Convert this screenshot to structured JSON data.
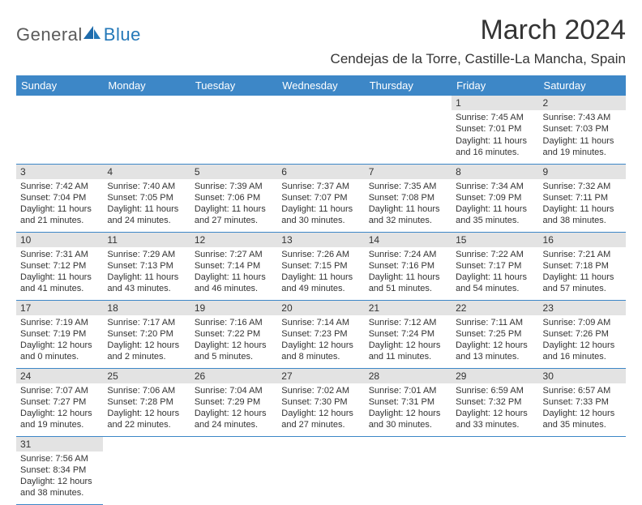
{
  "logo": {
    "text1": "General",
    "text2": "Blue"
  },
  "title": "March 2024",
  "location": "Cendejas de la Torre, Castille-La Mancha, Spain",
  "colors": {
    "header_bg": "#3d87c7",
    "header_text": "#ffffff",
    "daynum_bg": "#e3e3e3",
    "row_border": "#3d87c7",
    "title_color": "#343434",
    "logo_gray": "#5a5a5a",
    "logo_blue": "#2478b8"
  },
  "weekdays": [
    "Sunday",
    "Monday",
    "Tuesday",
    "Wednesday",
    "Thursday",
    "Friday",
    "Saturday"
  ],
  "weeks": [
    [
      null,
      null,
      null,
      null,
      null,
      {
        "n": "1",
        "sr": "Sunrise: 7:45 AM",
        "ss": "Sunset: 7:01 PM",
        "dl1": "Daylight: 11 hours",
        "dl2": "and 16 minutes."
      },
      {
        "n": "2",
        "sr": "Sunrise: 7:43 AM",
        "ss": "Sunset: 7:03 PM",
        "dl1": "Daylight: 11 hours",
        "dl2": "and 19 minutes."
      }
    ],
    [
      {
        "n": "3",
        "sr": "Sunrise: 7:42 AM",
        "ss": "Sunset: 7:04 PM",
        "dl1": "Daylight: 11 hours",
        "dl2": "and 21 minutes."
      },
      {
        "n": "4",
        "sr": "Sunrise: 7:40 AM",
        "ss": "Sunset: 7:05 PM",
        "dl1": "Daylight: 11 hours",
        "dl2": "and 24 minutes."
      },
      {
        "n": "5",
        "sr": "Sunrise: 7:39 AM",
        "ss": "Sunset: 7:06 PM",
        "dl1": "Daylight: 11 hours",
        "dl2": "and 27 minutes."
      },
      {
        "n": "6",
        "sr": "Sunrise: 7:37 AM",
        "ss": "Sunset: 7:07 PM",
        "dl1": "Daylight: 11 hours",
        "dl2": "and 30 minutes."
      },
      {
        "n": "7",
        "sr": "Sunrise: 7:35 AM",
        "ss": "Sunset: 7:08 PM",
        "dl1": "Daylight: 11 hours",
        "dl2": "and 32 minutes."
      },
      {
        "n": "8",
        "sr": "Sunrise: 7:34 AM",
        "ss": "Sunset: 7:09 PM",
        "dl1": "Daylight: 11 hours",
        "dl2": "and 35 minutes."
      },
      {
        "n": "9",
        "sr": "Sunrise: 7:32 AM",
        "ss": "Sunset: 7:11 PM",
        "dl1": "Daylight: 11 hours",
        "dl2": "and 38 minutes."
      }
    ],
    [
      {
        "n": "10",
        "sr": "Sunrise: 7:31 AM",
        "ss": "Sunset: 7:12 PM",
        "dl1": "Daylight: 11 hours",
        "dl2": "and 41 minutes."
      },
      {
        "n": "11",
        "sr": "Sunrise: 7:29 AM",
        "ss": "Sunset: 7:13 PM",
        "dl1": "Daylight: 11 hours",
        "dl2": "and 43 minutes."
      },
      {
        "n": "12",
        "sr": "Sunrise: 7:27 AM",
        "ss": "Sunset: 7:14 PM",
        "dl1": "Daylight: 11 hours",
        "dl2": "and 46 minutes."
      },
      {
        "n": "13",
        "sr": "Sunrise: 7:26 AM",
        "ss": "Sunset: 7:15 PM",
        "dl1": "Daylight: 11 hours",
        "dl2": "and 49 minutes."
      },
      {
        "n": "14",
        "sr": "Sunrise: 7:24 AM",
        "ss": "Sunset: 7:16 PM",
        "dl1": "Daylight: 11 hours",
        "dl2": "and 51 minutes."
      },
      {
        "n": "15",
        "sr": "Sunrise: 7:22 AM",
        "ss": "Sunset: 7:17 PM",
        "dl1": "Daylight: 11 hours",
        "dl2": "and 54 minutes."
      },
      {
        "n": "16",
        "sr": "Sunrise: 7:21 AM",
        "ss": "Sunset: 7:18 PM",
        "dl1": "Daylight: 11 hours",
        "dl2": "and 57 minutes."
      }
    ],
    [
      {
        "n": "17",
        "sr": "Sunrise: 7:19 AM",
        "ss": "Sunset: 7:19 PM",
        "dl1": "Daylight: 12 hours",
        "dl2": "and 0 minutes."
      },
      {
        "n": "18",
        "sr": "Sunrise: 7:17 AM",
        "ss": "Sunset: 7:20 PM",
        "dl1": "Daylight: 12 hours",
        "dl2": "and 2 minutes."
      },
      {
        "n": "19",
        "sr": "Sunrise: 7:16 AM",
        "ss": "Sunset: 7:22 PM",
        "dl1": "Daylight: 12 hours",
        "dl2": "and 5 minutes."
      },
      {
        "n": "20",
        "sr": "Sunrise: 7:14 AM",
        "ss": "Sunset: 7:23 PM",
        "dl1": "Daylight: 12 hours",
        "dl2": "and 8 minutes."
      },
      {
        "n": "21",
        "sr": "Sunrise: 7:12 AM",
        "ss": "Sunset: 7:24 PM",
        "dl1": "Daylight: 12 hours",
        "dl2": "and 11 minutes."
      },
      {
        "n": "22",
        "sr": "Sunrise: 7:11 AM",
        "ss": "Sunset: 7:25 PM",
        "dl1": "Daylight: 12 hours",
        "dl2": "and 13 minutes."
      },
      {
        "n": "23",
        "sr": "Sunrise: 7:09 AM",
        "ss": "Sunset: 7:26 PM",
        "dl1": "Daylight: 12 hours",
        "dl2": "and 16 minutes."
      }
    ],
    [
      {
        "n": "24",
        "sr": "Sunrise: 7:07 AM",
        "ss": "Sunset: 7:27 PM",
        "dl1": "Daylight: 12 hours",
        "dl2": "and 19 minutes."
      },
      {
        "n": "25",
        "sr": "Sunrise: 7:06 AM",
        "ss": "Sunset: 7:28 PM",
        "dl1": "Daylight: 12 hours",
        "dl2": "and 22 minutes."
      },
      {
        "n": "26",
        "sr": "Sunrise: 7:04 AM",
        "ss": "Sunset: 7:29 PM",
        "dl1": "Daylight: 12 hours",
        "dl2": "and 24 minutes."
      },
      {
        "n": "27",
        "sr": "Sunrise: 7:02 AM",
        "ss": "Sunset: 7:30 PM",
        "dl1": "Daylight: 12 hours",
        "dl2": "and 27 minutes."
      },
      {
        "n": "28",
        "sr": "Sunrise: 7:01 AM",
        "ss": "Sunset: 7:31 PM",
        "dl1": "Daylight: 12 hours",
        "dl2": "and 30 minutes."
      },
      {
        "n": "29",
        "sr": "Sunrise: 6:59 AM",
        "ss": "Sunset: 7:32 PM",
        "dl1": "Daylight: 12 hours",
        "dl2": "and 33 minutes."
      },
      {
        "n": "30",
        "sr": "Sunrise: 6:57 AM",
        "ss": "Sunset: 7:33 PM",
        "dl1": "Daylight: 12 hours",
        "dl2": "and 35 minutes."
      }
    ],
    [
      {
        "n": "31",
        "sr": "Sunrise: 7:56 AM",
        "ss": "Sunset: 8:34 PM",
        "dl1": "Daylight: 12 hours",
        "dl2": "and 38 minutes."
      },
      null,
      null,
      null,
      null,
      null,
      null
    ]
  ]
}
